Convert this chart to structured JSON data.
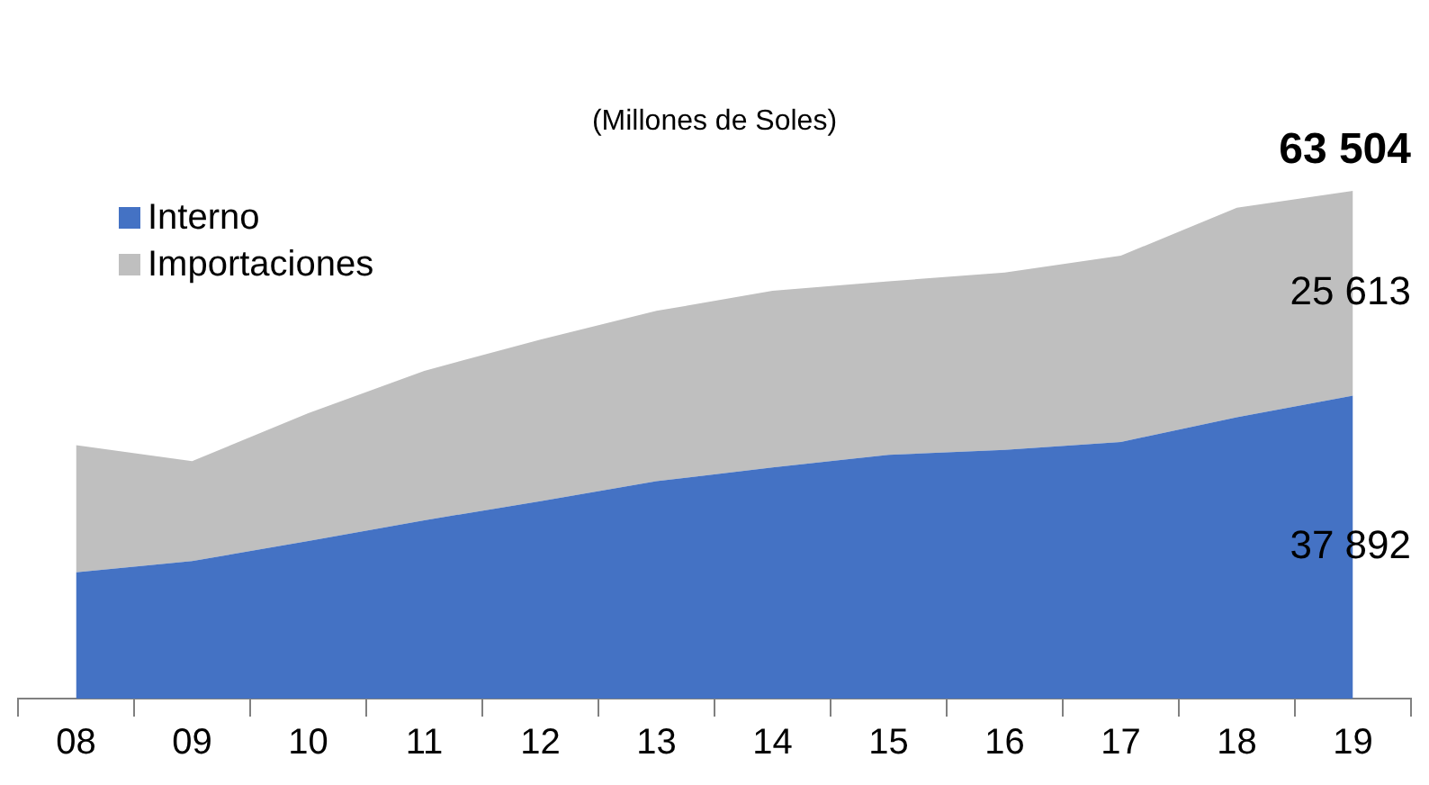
{
  "chart_data": {
    "type": "area",
    "subtitle": "(Millones de Soles)",
    "stacked": true,
    "categories": [
      "08",
      "09",
      "10",
      "11",
      "12",
      "13",
      "14",
      "15",
      "16",
      "17",
      "18",
      "19"
    ],
    "series": [
      {
        "name": "Interno",
        "color": "#4472c4",
        "values": [
          15800,
          17200,
          19700,
          22300,
          24700,
          27200,
          28900,
          30500,
          31100,
          32100,
          35200,
          37892
        ],
        "value_labels": [
          null,
          null,
          null,
          null,
          null,
          null,
          null,
          null,
          null,
          null,
          null,
          "37 892"
        ]
      },
      {
        "name": "Importaciones",
        "color": "#bfbfbf",
        "values": [
          15900,
          12500,
          16000,
          18700,
          20200,
          21300,
          22100,
          21700,
          22200,
          23300,
          26200,
          25613
        ],
        "value_labels": [
          null,
          null,
          null,
          null,
          null,
          null,
          null,
          null,
          null,
          null,
          null,
          "25 613"
        ]
      }
    ],
    "totals": [
      null,
      null,
      null,
      null,
      null,
      null,
      null,
      null,
      null,
      null,
      null,
      "63 504"
    ],
    "legend": "top left",
    "grid": false
  }
}
